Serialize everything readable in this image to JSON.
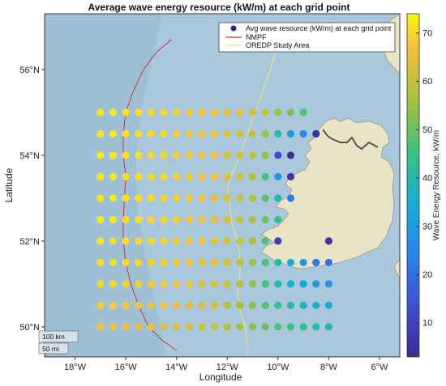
{
  "title": "Average wave energy resource (kW/m) at each grid point",
  "xlabel": "Longitude",
  "ylabel": "Latitude",
  "x_ticks": [
    {
      "v": -18,
      "label": "18°W"
    },
    {
      "v": -16,
      "label": "16°W"
    },
    {
      "v": -14,
      "label": "14°W"
    },
    {
      "v": -12,
      "label": "12°W"
    },
    {
      "v": -10,
      "label": "10°W"
    },
    {
      "v": -8,
      "label": "8°W"
    },
    {
      "v": -6,
      "label": "6°W"
    }
  ],
  "y_ticks": [
    {
      "v": 50,
      "label": "50°N"
    },
    {
      "v": 52,
      "label": "52°N"
    },
    {
      "v": 54,
      "label": "54°N"
    },
    {
      "v": 56,
      "label": "56°N"
    }
  ],
  "legend": {
    "items": [
      {
        "label": "Avg wave resource (kW/m) at each grid point",
        "symbol": "dot",
        "color": "#2b1f8a"
      },
      {
        "label": "NMPF",
        "symbol": "line",
        "color": "#c43a3a"
      },
      {
        "label": "OREDP Study Area",
        "symbol": "line",
        "color": "#e8e07a"
      }
    ]
  },
  "colorbar": {
    "label": "Wave Energy Resource, kW/m",
    "ticks": [
      10,
      20,
      30,
      40,
      50,
      60,
      70
    ],
    "min": 3,
    "max": 74
  },
  "scale_bar": {
    "km": "100 km",
    "mi": "50 mi"
  },
  "colors": {
    "ocean": "#a9c8dc",
    "ocean_deep": "#96b8d0",
    "land": "#e9e4c5",
    "nmpf": "#c43a3a",
    "oredp": "#e8e07a",
    "border": "#555555"
  },
  "chart_data": {
    "type": "scatter",
    "x_range": [
      -19.2,
      -5.2
    ],
    "y_range": [
      49.3,
      57.3
    ],
    "points": [
      {
        "lon": -17,
        "lat": 55,
        "v": 72
      },
      {
        "lon": -16.5,
        "lat": 55,
        "v": 72
      },
      {
        "lon": -16,
        "lat": 55,
        "v": 71
      },
      {
        "lon": -15.5,
        "lat": 55,
        "v": 71
      },
      {
        "lon": -15,
        "lat": 55,
        "v": 70
      },
      {
        "lon": -14.5,
        "lat": 55,
        "v": 70
      },
      {
        "lon": -14,
        "lat": 55,
        "v": 69
      },
      {
        "lon": -13.5,
        "lat": 55,
        "v": 68
      },
      {
        "lon": -13,
        "lat": 55,
        "v": 67
      },
      {
        "lon": -12.5,
        "lat": 55,
        "v": 66
      },
      {
        "lon": -12,
        "lat": 55,
        "v": 65
      },
      {
        "lon": -11.5,
        "lat": 55,
        "v": 64
      },
      {
        "lon": -11,
        "lat": 55,
        "v": 62
      },
      {
        "lon": -10.5,
        "lat": 55,
        "v": 60
      },
      {
        "lon": -10,
        "lat": 55,
        "v": 55
      },
      {
        "lon": -9.5,
        "lat": 55,
        "v": 52
      },
      {
        "lon": -9,
        "lat": 55,
        "v": 48
      },
      {
        "lon": -17,
        "lat": 54.5,
        "v": 72
      },
      {
        "lon": -16.5,
        "lat": 54.5,
        "v": 72
      },
      {
        "lon": -16,
        "lat": 54.5,
        "v": 71
      },
      {
        "lon": -15.5,
        "lat": 54.5,
        "v": 71
      },
      {
        "lon": -15,
        "lat": 54.5,
        "v": 70
      },
      {
        "lon": -14.5,
        "lat": 54.5,
        "v": 70
      },
      {
        "lon": -14,
        "lat": 54.5,
        "v": 69
      },
      {
        "lon": -13.5,
        "lat": 54.5,
        "v": 68
      },
      {
        "lon": -13,
        "lat": 54.5,
        "v": 67
      },
      {
        "lon": -12.5,
        "lat": 54.5,
        "v": 66
      },
      {
        "lon": -12,
        "lat": 54.5,
        "v": 64
      },
      {
        "lon": -11.5,
        "lat": 54.5,
        "v": 62
      },
      {
        "lon": -11,
        "lat": 54.5,
        "v": 60
      },
      {
        "lon": -10.5,
        "lat": 54.5,
        "v": 55
      },
      {
        "lon": -10,
        "lat": 54.5,
        "v": 42
      },
      {
        "lon": -9.5,
        "lat": 54.5,
        "v": 30
      },
      {
        "lon": -9,
        "lat": 54.5,
        "v": 25
      },
      {
        "lon": -8.5,
        "lat": 54.5,
        "v": 6
      },
      {
        "lon": -17,
        "lat": 54,
        "v": 72
      },
      {
        "lon": -16.5,
        "lat": 54,
        "v": 72
      },
      {
        "lon": -16,
        "lat": 54,
        "v": 71
      },
      {
        "lon": -15.5,
        "lat": 54,
        "v": 71
      },
      {
        "lon": -15,
        "lat": 54,
        "v": 70
      },
      {
        "lon": -14.5,
        "lat": 54,
        "v": 70
      },
      {
        "lon": -14,
        "lat": 54,
        "v": 69
      },
      {
        "lon": -13.5,
        "lat": 54,
        "v": 68
      },
      {
        "lon": -13,
        "lat": 54,
        "v": 67
      },
      {
        "lon": -12.5,
        "lat": 54,
        "v": 66
      },
      {
        "lon": -12,
        "lat": 54,
        "v": 64
      },
      {
        "lon": -11.5,
        "lat": 54,
        "v": 62
      },
      {
        "lon": -11,
        "lat": 54,
        "v": 59
      },
      {
        "lon": -10.5,
        "lat": 54,
        "v": 54
      },
      {
        "lon": -10,
        "lat": 54,
        "v": 12
      },
      {
        "lon": -9.5,
        "lat": 54,
        "v": 4
      },
      {
        "lon": -17,
        "lat": 53.5,
        "v": 72
      },
      {
        "lon": -16.5,
        "lat": 53.5,
        "v": 72
      },
      {
        "lon": -16,
        "lat": 53.5,
        "v": 71
      },
      {
        "lon": -15.5,
        "lat": 53.5,
        "v": 71
      },
      {
        "lon": -15,
        "lat": 53.5,
        "v": 70
      },
      {
        "lon": -14.5,
        "lat": 53.5,
        "v": 70
      },
      {
        "lon": -14,
        "lat": 53.5,
        "v": 69
      },
      {
        "lon": -13.5,
        "lat": 53.5,
        "v": 68
      },
      {
        "lon": -13,
        "lat": 53.5,
        "v": 67
      },
      {
        "lon": -12.5,
        "lat": 53.5,
        "v": 66
      },
      {
        "lon": -12,
        "lat": 53.5,
        "v": 64
      },
      {
        "lon": -11.5,
        "lat": 53.5,
        "v": 62
      },
      {
        "lon": -11,
        "lat": 53.5,
        "v": 58
      },
      {
        "lon": -10.5,
        "lat": 53.5,
        "v": 46
      },
      {
        "lon": -10,
        "lat": 53.5,
        "v": 30
      },
      {
        "lon": -9.5,
        "lat": 53.5,
        "v": 5
      },
      {
        "lon": -17,
        "lat": 53,
        "v": 72
      },
      {
        "lon": -16.5,
        "lat": 53,
        "v": 72
      },
      {
        "lon": -16,
        "lat": 53,
        "v": 71
      },
      {
        "lon": -15.5,
        "lat": 53,
        "v": 71
      },
      {
        "lon": -15,
        "lat": 53,
        "v": 70
      },
      {
        "lon": -14.5,
        "lat": 53,
        "v": 70
      },
      {
        "lon": -14,
        "lat": 53,
        "v": 69
      },
      {
        "lon": -13.5,
        "lat": 53,
        "v": 68
      },
      {
        "lon": -13,
        "lat": 53,
        "v": 67
      },
      {
        "lon": -12.5,
        "lat": 53,
        "v": 65
      },
      {
        "lon": -12,
        "lat": 53,
        "v": 63
      },
      {
        "lon": -11.5,
        "lat": 53,
        "v": 61
      },
      {
        "lon": -11,
        "lat": 53,
        "v": 57
      },
      {
        "lon": -10.5,
        "lat": 53,
        "v": 48
      },
      {
        "lon": -10,
        "lat": 53,
        "v": 40
      },
      {
        "lon": -9.5,
        "lat": 53,
        "v": 22
      },
      {
        "lon": -17,
        "lat": 52.5,
        "v": 72
      },
      {
        "lon": -16.5,
        "lat": 52.5,
        "v": 72
      },
      {
        "lon": -16,
        "lat": 52.5,
        "v": 71
      },
      {
        "lon": -15.5,
        "lat": 52.5,
        "v": 71
      },
      {
        "lon": -15,
        "lat": 52.5,
        "v": 70
      },
      {
        "lon": -14.5,
        "lat": 52.5,
        "v": 70
      },
      {
        "lon": -14,
        "lat": 52.5,
        "v": 69
      },
      {
        "lon": -13.5,
        "lat": 52.5,
        "v": 68
      },
      {
        "lon": -13,
        "lat": 52.5,
        "v": 66
      },
      {
        "lon": -12.5,
        "lat": 52.5,
        "v": 65
      },
      {
        "lon": -12,
        "lat": 52.5,
        "v": 63
      },
      {
        "lon": -11.5,
        "lat": 52.5,
        "v": 61
      },
      {
        "lon": -11,
        "lat": 52.5,
        "v": 57
      },
      {
        "lon": -10.5,
        "lat": 52.5,
        "v": 50
      },
      {
        "lon": -10,
        "lat": 52.5,
        "v": 44
      },
      {
        "lon": -17,
        "lat": 52,
        "v": 72
      },
      {
        "lon": -16.5,
        "lat": 52,
        "v": 71
      },
      {
        "lon": -16,
        "lat": 52,
        "v": 71
      },
      {
        "lon": -15.5,
        "lat": 52,
        "v": 70
      },
      {
        "lon": -15,
        "lat": 52,
        "v": 70
      },
      {
        "lon": -14.5,
        "lat": 52,
        "v": 69
      },
      {
        "lon": -14,
        "lat": 52,
        "v": 68
      },
      {
        "lon": -13.5,
        "lat": 52,
        "v": 67
      },
      {
        "lon": -13,
        "lat": 52,
        "v": 66
      },
      {
        "lon": -12.5,
        "lat": 52,
        "v": 65
      },
      {
        "lon": -12,
        "lat": 52,
        "v": 63
      },
      {
        "lon": -11.5,
        "lat": 52,
        "v": 61
      },
      {
        "lon": -11,
        "lat": 52,
        "v": 56
      },
      {
        "lon": -10.5,
        "lat": 52,
        "v": 48
      },
      {
        "lon": -10,
        "lat": 52,
        "v": 8
      },
      {
        "lon": -8,
        "lat": 52,
        "v": 6
      },
      {
        "lon": -17,
        "lat": 51.5,
        "v": 71
      },
      {
        "lon": -16.5,
        "lat": 51.5,
        "v": 71
      },
      {
        "lon": -16,
        "lat": 51.5,
        "v": 70
      },
      {
        "lon": -15.5,
        "lat": 51.5,
        "v": 70
      },
      {
        "lon": -15,
        "lat": 51.5,
        "v": 69
      },
      {
        "lon": -14.5,
        "lat": 51.5,
        "v": 69
      },
      {
        "lon": -14,
        "lat": 51.5,
        "v": 68
      },
      {
        "lon": -13.5,
        "lat": 51.5,
        "v": 67
      },
      {
        "lon": -13,
        "lat": 51.5,
        "v": 65
      },
      {
        "lon": -12.5,
        "lat": 51.5,
        "v": 64
      },
      {
        "lon": -12,
        "lat": 51.5,
        "v": 62
      },
      {
        "lon": -11.5,
        "lat": 51.5,
        "v": 60
      },
      {
        "lon": -11,
        "lat": 51.5,
        "v": 55
      },
      {
        "lon": -10.5,
        "lat": 51.5,
        "v": 47
      },
      {
        "lon": -10,
        "lat": 51.5,
        "v": 40
      },
      {
        "lon": -9.5,
        "lat": 51.5,
        "v": 34
      },
      {
        "lon": -9,
        "lat": 51.5,
        "v": 28
      },
      {
        "lon": -8.5,
        "lat": 51.5,
        "v": 22
      },
      {
        "lon": -8,
        "lat": 51.5,
        "v": 20
      },
      {
        "lon": -17,
        "lat": 51,
        "v": 70
      },
      {
        "lon": -16.5,
        "lat": 51,
        "v": 70
      },
      {
        "lon": -16,
        "lat": 51,
        "v": 69
      },
      {
        "lon": -15.5,
        "lat": 51,
        "v": 69
      },
      {
        "lon": -15,
        "lat": 51,
        "v": 68
      },
      {
        "lon": -14.5,
        "lat": 51,
        "v": 68
      },
      {
        "lon": -14,
        "lat": 51,
        "v": 67
      },
      {
        "lon": -13.5,
        "lat": 51,
        "v": 66
      },
      {
        "lon": -13,
        "lat": 51,
        "v": 64
      },
      {
        "lon": -12.5,
        "lat": 51,
        "v": 63
      },
      {
        "lon": -12,
        "lat": 51,
        "v": 61
      },
      {
        "lon": -11.5,
        "lat": 51,
        "v": 58
      },
      {
        "lon": -11,
        "lat": 51,
        "v": 54
      },
      {
        "lon": -10.5,
        "lat": 51,
        "v": 46
      },
      {
        "lon": -10,
        "lat": 51,
        "v": 40
      },
      {
        "lon": -9.5,
        "lat": 51,
        "v": 36
      },
      {
        "lon": -9,
        "lat": 51,
        "v": 33
      },
      {
        "lon": -8.5,
        "lat": 51,
        "v": 30
      },
      {
        "lon": -8,
        "lat": 51,
        "v": 28
      },
      {
        "lon": -17,
        "lat": 50.5,
        "v": 69
      },
      {
        "lon": -16.5,
        "lat": 50.5,
        "v": 69
      },
      {
        "lon": -16,
        "lat": 50.5,
        "v": 68
      },
      {
        "lon": -15.5,
        "lat": 50.5,
        "v": 67
      },
      {
        "lon": -15,
        "lat": 50.5,
        "v": 66
      },
      {
        "lon": -14.5,
        "lat": 50.5,
        "v": 66
      },
      {
        "lon": -14,
        "lat": 50.5,
        "v": 65
      },
      {
        "lon": -13.5,
        "lat": 50.5,
        "v": 64
      },
      {
        "lon": -13,
        "lat": 50.5,
        "v": 63
      },
      {
        "lon": -12.5,
        "lat": 50.5,
        "v": 61
      },
      {
        "lon": -12,
        "lat": 50.5,
        "v": 59
      },
      {
        "lon": -11.5,
        "lat": 50.5,
        "v": 57
      },
      {
        "lon": -11,
        "lat": 50.5,
        "v": 53
      },
      {
        "lon": -10.5,
        "lat": 50.5,
        "v": 48
      },
      {
        "lon": -10,
        "lat": 50.5,
        "v": 44
      },
      {
        "lon": -9.5,
        "lat": 50.5,
        "v": 41
      },
      {
        "lon": -9,
        "lat": 50.5,
        "v": 38
      },
      {
        "lon": -8.5,
        "lat": 50.5,
        "v": 36
      },
      {
        "lon": -8,
        "lat": 50.5,
        "v": 34
      },
      {
        "lon": -17,
        "lat": 50,
        "v": 67
      },
      {
        "lon": -16.5,
        "lat": 50,
        "v": 67
      },
      {
        "lon": -16,
        "lat": 50,
        "v": 66
      },
      {
        "lon": -15.5,
        "lat": 50,
        "v": 65
      },
      {
        "lon": -15,
        "lat": 50,
        "v": 65
      },
      {
        "lon": -14.5,
        "lat": 50,
        "v": 64
      },
      {
        "lon": -14,
        "lat": 50,
        "v": 63
      },
      {
        "lon": -13.5,
        "lat": 50,
        "v": 62
      },
      {
        "lon": -13,
        "lat": 50,
        "v": 61
      },
      {
        "lon": -12.5,
        "lat": 50,
        "v": 60
      },
      {
        "lon": -12,
        "lat": 50,
        "v": 58
      },
      {
        "lon": -11.5,
        "lat": 50,
        "v": 56
      },
      {
        "lon": -11,
        "lat": 50,
        "v": 53
      },
      {
        "lon": -10.5,
        "lat": 50,
        "v": 50
      },
      {
        "lon": -10,
        "lat": 50,
        "v": 47
      },
      {
        "lon": -9.5,
        "lat": 50,
        "v": 45
      },
      {
        "lon": -9,
        "lat": 50,
        "v": 43
      },
      {
        "lon": -8.5,
        "lat": 50,
        "v": 41
      },
      {
        "lon": -8,
        "lat": 50,
        "v": 39
      }
    ],
    "nmpf_line": [
      [
        -14.2,
        56.7
      ],
      [
        -14.8,
        56.4
      ],
      [
        -15.3,
        56.0
      ],
      [
        -15.7,
        55.5
      ],
      [
        -16.0,
        55.0
      ],
      [
        -16.1,
        54.5
      ],
      [
        -16.1,
        54.0
      ],
      [
        -16.0,
        53.5
      ],
      [
        -16.05,
        53.0
      ],
      [
        -16.1,
        52.5
      ],
      [
        -16.1,
        52.0
      ],
      [
        -16.0,
        51.5
      ],
      [
        -15.8,
        51.0
      ],
      [
        -15.5,
        50.5
      ],
      [
        -15.1,
        50.0
      ],
      [
        -14.6,
        49.7
      ],
      [
        -14.0,
        49.45
      ]
    ],
    "oredp_line": [
      [
        -10.0,
        56.6
      ],
      [
        -10.3,
        56.0
      ],
      [
        -10.6,
        55.5
      ],
      [
        -10.9,
        55.0
      ],
      [
        -11.2,
        54.5
      ],
      [
        -11.5,
        54.0
      ],
      [
        -11.8,
        53.6
      ],
      [
        -12.0,
        53.2
      ],
      [
        -11.9,
        52.8
      ],
      [
        -11.8,
        52.4
      ],
      [
        -11.6,
        52.0
      ],
      [
        -11.5,
        51.6
      ],
      [
        -11.5,
        51.2
      ],
      [
        -11.6,
        50.8
      ],
      [
        -11.5,
        50.4
      ],
      [
        -11.3,
        50.0
      ],
      [
        -11.2,
        49.6
      ],
      [
        -11.2,
        49.3
      ]
    ]
  }
}
